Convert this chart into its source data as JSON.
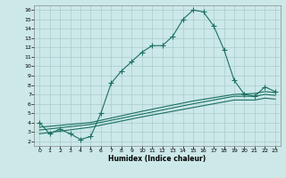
{
  "xlabel": "Humidex (Indice chaleur)",
  "ylabel": "",
  "bg_color": "#cce8e8",
  "line_color": "#1a7060",
  "grid_color": "#aacccc",
  "xlim": [
    -0.5,
    23.5
  ],
  "ylim": [
    1.5,
    16.5
  ],
  "xticks": [
    0,
    1,
    2,
    3,
    4,
    5,
    6,
    7,
    8,
    9,
    10,
    11,
    12,
    13,
    14,
    15,
    16,
    17,
    18,
    19,
    20,
    21,
    22,
    23
  ],
  "yticks": [
    2,
    3,
    4,
    5,
    6,
    7,
    8,
    9,
    10,
    11,
    12,
    13,
    14,
    15,
    16
  ],
  "line1_x": [
    0,
    1,
    2,
    3,
    4,
    5,
    6,
    7,
    8,
    9,
    10,
    11,
    12,
    13,
    14,
    15,
    16,
    17,
    18,
    19,
    20,
    21,
    22,
    23
  ],
  "line1_y": [
    4.0,
    2.8,
    3.3,
    2.8,
    2.2,
    2.5,
    5.0,
    8.2,
    9.5,
    10.5,
    11.5,
    12.2,
    12.2,
    13.2,
    15.0,
    16.0,
    15.8,
    14.3,
    11.8,
    8.5,
    7.0,
    6.8,
    7.8,
    7.3
  ],
  "line2_x": [
    0,
    5,
    10,
    15,
    19,
    21,
    22,
    23
  ],
  "line2_y": [
    3.5,
    4.0,
    5.2,
    6.3,
    7.0,
    7.1,
    7.3,
    7.2
  ],
  "line3_x": [
    0,
    5,
    10,
    15,
    19,
    21,
    22,
    23
  ],
  "line3_y": [
    3.2,
    3.8,
    4.9,
    6.0,
    6.8,
    6.8,
    7.0,
    6.9
  ],
  "line4_x": [
    0,
    5,
    10,
    15,
    19,
    21,
    22,
    23
  ],
  "line4_y": [
    2.8,
    3.5,
    4.6,
    5.6,
    6.4,
    6.4,
    6.6,
    6.5
  ]
}
